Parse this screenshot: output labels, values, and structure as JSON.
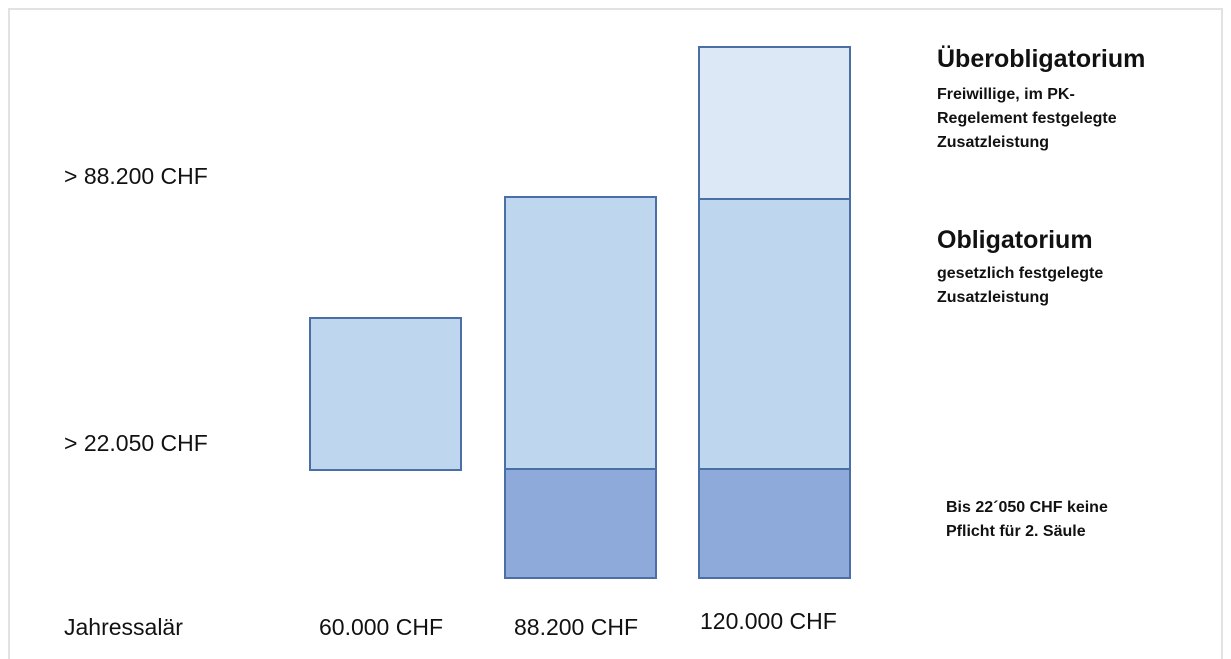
{
  "levels": {
    "upper": "> 88.200 CHF",
    "lower": "> 22.050 CHF"
  },
  "salaries": {
    "label": "Jahressalär",
    "s1": "60.000 CHF",
    "s2": "88.200 CHF",
    "s3": "120.000 CHF"
  },
  "legend": {
    "uber": {
      "title": "Überobligatorium",
      "text": "Freiwillige, im PK-Regelement festgelegte Zusatzleistung"
    },
    "obl": {
      "title": "Obligatorium",
      "text": "gesetzlich festgelegte Zusatzleistung"
    },
    "base": {
      "text": "Bis 22´050 CHF keine Pflicht für 2. Säule"
    }
  },
  "colors": {
    "obligatorium": "#bed7ee",
    "ueberobligatorium": "#dce8f5",
    "base": "#8eaadb",
    "border": "#4a6fa6"
  }
}
